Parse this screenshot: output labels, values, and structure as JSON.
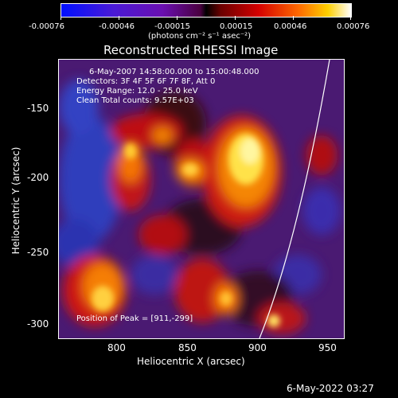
{
  "colorbar": {
    "tick_labels": [
      "-0.00076",
      "-0.00046",
      "-0.00015",
      "0.00015",
      "0.00046",
      "0.00076"
    ],
    "unit_label": "(photons cm⁻² s⁻¹ asec⁻²)"
  },
  "plot": {
    "title": "Reconstructed RHESSI Image",
    "info_lines": [
      "6-May-2007 14:58:00.000 to 15:00:48.000",
      "Detectors: 3F 4F 5F 6F 7F 8F, Att 0",
      "Energy Range: 12.0 - 25.0 keV",
      "Clean     Total counts: 9.57E+03"
    ],
    "peak_text": "Position of Peak = [911,-299]",
    "x_axis_label": "Heliocentric X (arcsec)",
    "y_axis_label": "Heliocentric Y (arcsec)",
    "x_ticks": [
      "800",
      "850",
      "900",
      "950"
    ],
    "y_ticks": [
      "-150",
      "-200",
      "-250",
      "-300"
    ]
  },
  "footer": {
    "timestamp": "6-May-2022 03:27"
  },
  "colors": {
    "background": "#000000",
    "text": "#ffffff",
    "blue": "#2a3fbf",
    "purple": "#5a1f7a",
    "red": "#d01010",
    "orange": "#ff8a00",
    "yellow": "#fff060"
  }
}
